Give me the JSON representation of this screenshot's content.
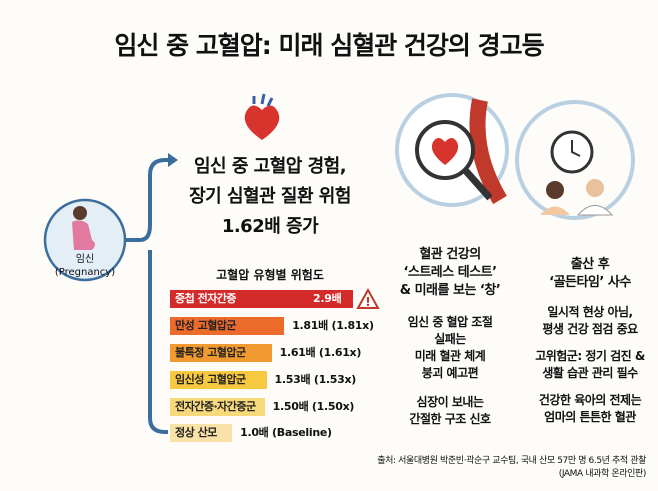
{
  "title": "임신 중 고혈압: 미래 심혈관 건강의 경고등",
  "pregnancy": {
    "label_ko": "임신",
    "label_en": "(Pregnancy)"
  },
  "headline": [
    "임신 중 고혈압 경험,",
    "장기 심혈관 질환 위험",
    "1.62배 증가"
  ],
  "chart_data": {
    "type": "bar",
    "title": "고혈압 유형별 위험도",
    "categories": [
      "중첩 전자간증",
      "만성 고혈압군",
      "불특정 고혈압군",
      "임신성 고혈압군",
      "전자간증·자간증군",
      "정상 산모"
    ],
    "values": [
      2.9,
      1.81,
      1.61,
      1.53,
      1.5,
      1.0
    ],
    "value_labels": [
      "2.9배",
      "1.81배 (1.81x)",
      "1.61배 (1.61x)",
      "1.53배 (1.53x)",
      "1.50배 (1.50x)",
      "1.0배 (Baseline)"
    ],
    "colors": [
      "#d42a2a",
      "#ec6a2a",
      "#f09a30",
      "#f6c940",
      "#f7d97a",
      "#f8e2a8"
    ]
  },
  "column_left": {
    "heading": [
      "혈관 건강의",
      "‘스트레스 테스트’",
      "& 미래를 보는 ‘창’"
    ],
    "p1": [
      "임신 중 혈압 조절",
      "실패는",
      "미래 혈관 체계",
      "붕괴 예고편"
    ],
    "p2": [
      "심장이 보내는",
      "간절한 구조 신호"
    ]
  },
  "column_right": {
    "heading": [
      "출산 후",
      "‘골든타임’ 사수"
    ],
    "p1": [
      "일시적 현상 아님,",
      "평생 건강 점검 중요"
    ],
    "p2": [
      "고위험군: 정기 검진 &",
      "생활 습관 관리 필수"
    ],
    "p3": [
      "건강한 육아의 전제는",
      "엄마의 튼튼한 혈관"
    ]
  },
  "source": [
    "출처: 서울대병원 박준빈·곽순구 교수팀, 국내 산모 57만 명 6.5년 추적 관찰",
    "(JAMA 내과학 온라인판)"
  ],
  "colors": {
    "accent_blue": "#3b6e9c",
    "ring": "#b9cfe2"
  }
}
